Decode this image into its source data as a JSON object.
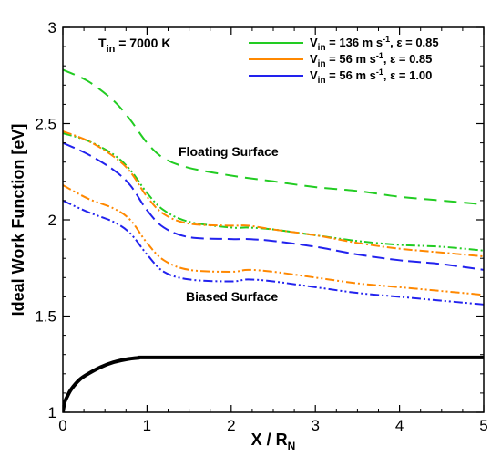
{
  "chart_data": {
    "type": "line",
    "xlim": [
      0,
      5
    ],
    "ylim": [
      1,
      3
    ],
    "x_ticks": [
      "0",
      "1",
      "2",
      "3",
      "4",
      "5"
    ],
    "y_ticks": [
      "1",
      "1.5",
      "2",
      "2.5",
      "3"
    ],
    "xlabel": {
      "main": "X / R",
      "sub": "N"
    },
    "ylabel": "Ideal Work Function [eV]",
    "grid": false,
    "legend_position": "top-right",
    "title": {
      "main": "T",
      "sub": "in",
      "rest": " = 7000 K"
    },
    "annotations": {
      "floating": "Floating Surface",
      "biased": "Biased Surface"
    },
    "legend": [
      {
        "v": "V",
        "v_sub": "in",
        "speed": " = 136 m s",
        "sup": "-1",
        "eps": ", ε = 0.85",
        "color": "#22cc22"
      },
      {
        "v": "V",
        "v_sub": "in",
        "speed": " = 56 m s",
        "sup": "-1",
        "eps": ", ε = 0.85",
        "color": "#ff8800"
      },
      {
        "v": "V",
        "v_sub": "in",
        "speed": " = 56 m s",
        "sup": "-1",
        "eps": ", ε = 1.00",
        "color": "#2222ee"
      }
    ],
    "series": [
      {
        "group": "floating",
        "color": "#22cc22",
        "dash": "14,8",
        "x": [
          0,
          0.3,
          0.6,
          0.8,
          1.0,
          1.2,
          1.5,
          2.0,
          2.5,
          3.0,
          3.5,
          4.0,
          4.5,
          5.0
        ],
        "y": [
          2.78,
          2.72,
          2.62,
          2.52,
          2.4,
          2.32,
          2.27,
          2.23,
          2.2,
          2.17,
          2.15,
          2.12,
          2.1,
          2.08
        ]
      },
      {
        "group": "floating",
        "color": "#22cc22",
        "dash": "10,3,2,3,2,3",
        "x": [
          0,
          0.3,
          0.6,
          0.8,
          1.0,
          1.2,
          1.5,
          2.0,
          2.2,
          2.5,
          3.0,
          3.5,
          4.0,
          4.5,
          5.0
        ],
        "y": [
          2.45,
          2.41,
          2.34,
          2.26,
          2.14,
          2.05,
          1.99,
          1.96,
          1.96,
          1.95,
          1.92,
          1.89,
          1.87,
          1.86,
          1.84
        ]
      },
      {
        "group": "floating",
        "color": "#ff8800",
        "dash": "10,3,2,3",
        "x": [
          0,
          0.3,
          0.6,
          0.8,
          1.0,
          1.2,
          1.5,
          2.0,
          2.2,
          2.5,
          3.0,
          3.5,
          4.0,
          4.5,
          5.0
        ],
        "y": [
          2.46,
          2.41,
          2.33,
          2.25,
          2.12,
          2.03,
          1.98,
          1.97,
          1.97,
          1.95,
          1.92,
          1.88,
          1.85,
          1.83,
          1.81
        ]
      },
      {
        "group": "floating",
        "color": "#2222ee",
        "dash": "14,6",
        "x": [
          0,
          0.3,
          0.6,
          0.8,
          1.0,
          1.2,
          1.5,
          2.0,
          2.2,
          2.5,
          3.0,
          3.5,
          4.0,
          4.5,
          5.0
        ],
        "y": [
          2.4,
          2.34,
          2.26,
          2.18,
          2.05,
          1.96,
          1.91,
          1.9,
          1.9,
          1.89,
          1.86,
          1.82,
          1.79,
          1.77,
          1.74
        ]
      },
      {
        "group": "biased",
        "color": "#ff8800",
        "dash": "10,3,2,3,2,3",
        "x": [
          0,
          0.3,
          0.6,
          0.8,
          1.0,
          1.2,
          1.5,
          2.0,
          2.2,
          2.5,
          3.0,
          3.5,
          4.0,
          4.5,
          5.0
        ],
        "y": [
          2.18,
          2.11,
          2.06,
          2.0,
          1.88,
          1.79,
          1.74,
          1.73,
          1.74,
          1.73,
          1.7,
          1.67,
          1.65,
          1.63,
          1.61
        ]
      },
      {
        "group": "biased",
        "color": "#2222ee",
        "dash": "10,3,2,3,2,3",
        "x": [
          0,
          0.3,
          0.6,
          0.8,
          1.0,
          1.2,
          1.5,
          2.0,
          2.2,
          2.5,
          3.0,
          3.5,
          4.0,
          4.5,
          5.0
        ],
        "y": [
          2.1,
          2.04,
          1.99,
          1.93,
          1.82,
          1.73,
          1.69,
          1.68,
          1.69,
          1.68,
          1.65,
          1.62,
          1.6,
          1.58,
          1.56
        ]
      }
    ],
    "body_profile": {
      "color": "#000000",
      "x": [
        0,
        0.02,
        0.05,
        0.1,
        0.2,
        0.3,
        0.45,
        0.6,
        0.75,
        0.9,
        1.0,
        2.0,
        3.0,
        4.0,
        5.0
      ],
      "y": [
        1.0,
        1.05,
        1.08,
        1.12,
        1.17,
        1.2,
        1.235,
        1.26,
        1.275,
        1.283,
        1.285,
        1.285,
        1.285,
        1.285,
        1.285
      ]
    }
  }
}
